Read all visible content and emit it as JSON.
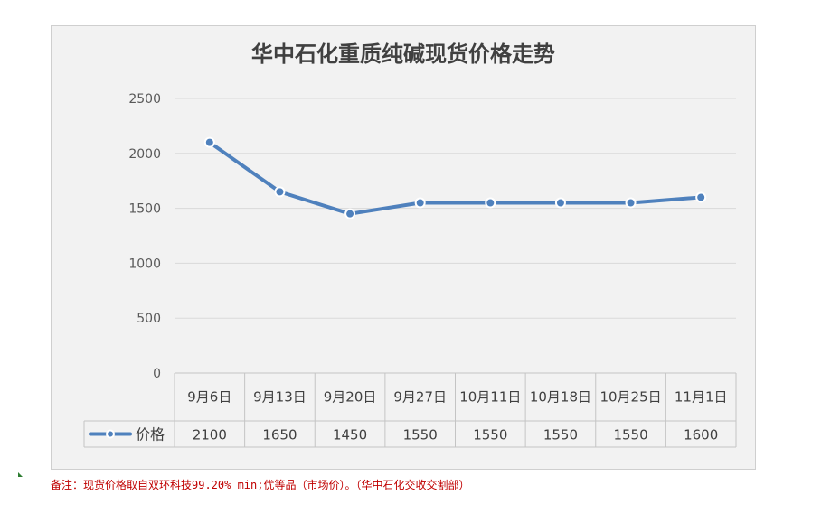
{
  "chart_data": {
    "type": "line",
    "title": "华中石化重质纯碱现货价格走势",
    "categories": [
      "9月6日",
      "9月13日",
      "9月20日",
      "9月27日",
      "10月11日",
      "10月18日",
      "10月25日",
      "11月1日"
    ],
    "series": [
      {
        "name": "价格",
        "values": [
          2100,
          1650,
          1450,
          1550,
          1550,
          1550,
          1550,
          1600
        ],
        "color": "#4f81bd"
      }
    ],
    "ylim": [
      0,
      2500
    ],
    "yticks": [
      0,
      500,
      1000,
      1500,
      2000,
      2500
    ],
    "grid": true,
    "data_table": true
  },
  "footer_note": "备注：现货价格取自双环科技99.20% min;优等品（市场价）。（华中石化交收交割部）"
}
